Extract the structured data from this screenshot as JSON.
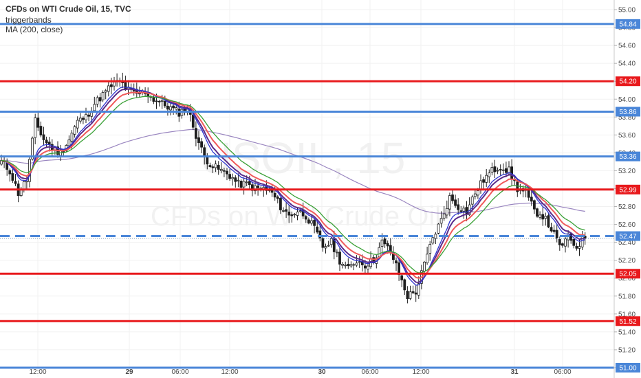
{
  "header": {
    "title": "CFDs on WTI Crude Oil, 15, TVC",
    "indicator_1": "triggerbands",
    "indicator_2": "MA (200, close)"
  },
  "watermark": {
    "symbol": "USOIL, 15",
    "description": "CFDs on WTI Crude Oil"
  },
  "colors": {
    "support_blue": "#4a86d8",
    "resistance_red": "#e8191c",
    "candle": "#1e1e1e",
    "ma_purple": "#5a2a8a",
    "ma_blue": "#2f36d0",
    "ma_red": "#f05a5a",
    "ma_green": "#3aa036",
    "ma200": "#9a86c0"
  },
  "chart_data": {
    "type": "candlestick",
    "instrument": "CFDs on WTI Crude Oil",
    "timeframe": "15",
    "y_axis": {
      "ylim": [
        50.9,
        55.1
      ],
      "ticks": [
        51.0,
        51.2,
        51.4,
        51.6,
        51.8,
        52.0,
        52.2,
        52.4,
        52.6,
        52.8,
        53.0,
        53.2,
        53.4,
        53.6,
        53.8,
        54.0,
        54.2,
        54.4,
        54.6,
        54.8,
        55.0
      ],
      "tick_labels": [
        "51.00",
        "51.20",
        "51.40",
        "51.60",
        "51.80",
        "52.00",
        "52.20",
        "52.40",
        "52.60",
        "52.80",
        "53.00",
        "53.20",
        "53.40",
        "53.60",
        "53.80",
        "54.00",
        "54.20",
        "54.40",
        "54.60",
        "54.80",
        "55.00"
      ],
      "position": "right"
    },
    "x_axis": {
      "labels": [
        "12:00",
        "29",
        "06:00",
        "12:00",
        "30",
        "06:00",
        "12:00",
        "31",
        "06:00"
      ],
      "bold_labels": [
        "29",
        "30",
        "31"
      ]
    },
    "horizontal_levels": [
      {
        "value": 54.84,
        "label": "54.84",
        "color": "blue",
        "style": "solid"
      },
      {
        "value": 54.2,
        "label": "54.20",
        "color": "red",
        "style": "solid"
      },
      {
        "value": 53.86,
        "label": "53.86",
        "color": "blue",
        "style": "solid"
      },
      {
        "value": 53.36,
        "label": "53.36",
        "color": "blue",
        "style": "solid"
      },
      {
        "value": 52.99,
        "label": "52.99",
        "color": "red",
        "style": "solid"
      },
      {
        "value": 52.47,
        "label": "52.47",
        "color": "blue",
        "style": "dashed"
      },
      {
        "value": 52.05,
        "label": "52.05",
        "color": "red",
        "style": "solid"
      },
      {
        "value": 51.52,
        "label": "51.52",
        "color": "red",
        "style": "solid"
      },
      {
        "value": 51.0,
        "label": "51.00",
        "color": "blue",
        "style": "solid"
      }
    ],
    "last_price": 52.47,
    "close_path": [
      [
        0,
        53.3
      ],
      [
        3,
        53.2
      ],
      [
        6,
        52.95
      ],
      [
        9,
        53.1
      ],
      [
        12,
        53.75
      ],
      [
        15,
        53.55
      ],
      [
        18,
        53.45
      ],
      [
        21,
        53.4
      ],
      [
        24,
        53.55
      ],
      [
        27,
        53.75
      ],
      [
        30,
        53.8
      ],
      [
        33,
        53.95
      ],
      [
        36,
        54.05
      ],
      [
        39,
        54.15
      ],
      [
        42,
        54.2
      ],
      [
        45,
        54.1
      ],
      [
        48,
        54.05
      ],
      [
        51,
        54.08
      ],
      [
        54,
        54.0
      ],
      [
        57,
        53.95
      ],
      [
        60,
        53.9
      ],
      [
        63,
        53.85
      ],
      [
        66,
        53.9
      ],
      [
        69,
        53.6
      ],
      [
        72,
        53.35
      ],
      [
        75,
        53.25
      ],
      [
        78,
        53.2
      ],
      [
        81,
        53.15
      ],
      [
        84,
        53.05
      ],
      [
        87,
        53.05
      ],
      [
        90,
        53.0
      ],
      [
        93,
        53.0
      ],
      [
        96,
        52.95
      ],
      [
        99,
        52.8
      ],
      [
        102,
        52.7
      ],
      [
        105,
        52.75
      ],
      [
        108,
        52.7
      ],
      [
        111,
        52.55
      ],
      [
        114,
        52.35
      ],
      [
        117,
        52.4
      ],
      [
        120,
        52.2
      ],
      [
        123,
        52.1
      ],
      [
        126,
        52.2
      ],
      [
        129,
        52.15
      ],
      [
        132,
        52.2
      ],
      [
        135,
        52.4
      ],
      [
        138,
        52.3
      ],
      [
        141,
        52.05
      ],
      [
        144,
        51.8
      ],
      [
        147,
        51.85
      ],
      [
        150,
        52.15
      ],
      [
        153,
        52.45
      ],
      [
        156,
        52.65
      ],
      [
        159,
        52.9
      ],
      [
        162,
        52.8
      ],
      [
        165,
        52.75
      ],
      [
        168,
        52.95
      ],
      [
        171,
        53.1
      ],
      [
        174,
        53.2
      ],
      [
        177,
        53.25
      ],
      [
        180,
        53.2
      ],
      [
        183,
        53.0
      ],
      [
        186,
        52.95
      ],
      [
        189,
        52.75
      ],
      [
        192,
        52.7
      ],
      [
        195,
        52.55
      ],
      [
        198,
        52.35
      ],
      [
        201,
        52.45
      ],
      [
        204,
        52.35
      ],
      [
        207,
        52.47
      ]
    ]
  }
}
